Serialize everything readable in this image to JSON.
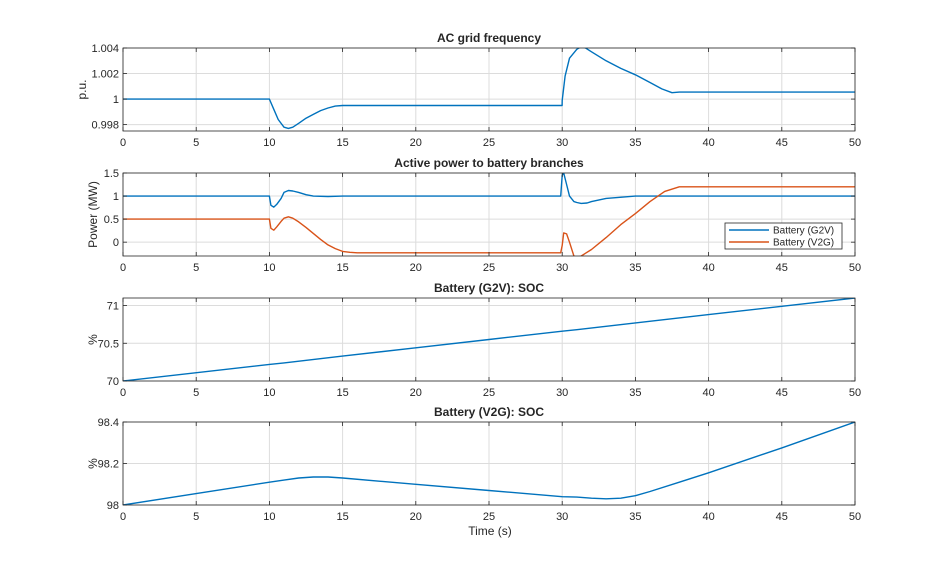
{
  "figure": {
    "xlabel": "Time (s)"
  },
  "colors": {
    "blue": "#0072BD",
    "orange": "#D95319",
    "grid": "#dcdcdc",
    "axis": "#262626"
  },
  "chart_data": [
    {
      "type": "line",
      "title": "AC grid frequency",
      "xlabel": "",
      "ylabel": "p.u.",
      "xlim": [
        0,
        50
      ],
      "ylim": [
        0.9975,
        1.004
      ],
      "xticks": [
        "0",
        "5",
        "10",
        "15",
        "20",
        "25",
        "30",
        "35",
        "40",
        "45",
        "50"
      ],
      "yticks": [
        {
          "v": 0.998,
          "label": "0.998"
        },
        {
          "v": 1.0,
          "label": "1"
        },
        {
          "v": 1.002,
          "label": "1.002"
        },
        {
          "v": 1.004,
          "label": "1.004"
        }
      ],
      "grid": true,
      "legend": null,
      "series": [
        {
          "color_key": "blue",
          "x": [
            0,
            10,
            10.3,
            10.6,
            11,
            11.3,
            11.6,
            12,
            12.5,
            13,
            13.5,
            14,
            14.5,
            15,
            16,
            20,
            25,
            29.99,
            30,
            30.2,
            30.5,
            31,
            31.3,
            31.6,
            32,
            33,
            34,
            35,
            36,
            36.8,
            37.5,
            38,
            40,
            45,
            50
          ],
          "y": [
            1.0,
            1.0,
            0.9992,
            0.9984,
            0.9978,
            0.9977,
            0.9978,
            0.9981,
            0.9985,
            0.9988,
            0.9991,
            0.9993,
            0.99945,
            0.9995,
            0.9995,
            0.9995,
            0.9995,
            0.9995,
            0.9999,
            1.0018,
            1.0032,
            1.0039,
            1.0041,
            1.004,
            1.0037,
            1.003,
            1.0024,
            1.0019,
            1.0013,
            1.0008,
            1.0005,
            1.00055,
            1.00055,
            1.00055,
            1.00055
          ]
        }
      ]
    },
    {
      "type": "line",
      "title": "Active power to battery branches",
      "xlabel": "",
      "ylabel": "Power (MW)",
      "xlim": [
        0,
        50
      ],
      "ylim": [
        -0.3,
        1.5
      ],
      "xticks": [
        "0",
        "5",
        "10",
        "15",
        "20",
        "25",
        "30",
        "35",
        "40",
        "45",
        "50"
      ],
      "yticks": [
        {
          "v": 0,
          "label": "0"
        },
        {
          "v": 0.5,
          "label": "0.5"
        },
        {
          "v": 1,
          "label": "1"
        },
        {
          "v": 1.5,
          "label": "1.5"
        }
      ],
      "grid": true,
      "legend": "bottom-right",
      "series": [
        {
          "name": "Battery (G2V)",
          "color_key": "blue",
          "x": [
            0,
            10,
            10.1,
            10.3,
            10.5,
            10.8,
            11,
            11.3,
            11.6,
            12,
            12.5,
            13,
            14,
            15,
            20,
            25,
            29.9,
            30,
            30.1,
            30.3,
            30.5,
            30.8,
            31,
            31.3,
            31.7,
            32,
            33,
            35,
            40,
            45,
            50
          ],
          "y": [
            1.0,
            1.0,
            0.8,
            0.76,
            0.82,
            0.95,
            1.08,
            1.12,
            1.11,
            1.08,
            1.03,
            1.0,
            0.99,
            1.0,
            1.0,
            1.0,
            1.0,
            1.45,
            1.5,
            1.25,
            1.0,
            0.88,
            0.86,
            0.84,
            0.85,
            0.88,
            0.95,
            1.0,
            1.0,
            1.0,
            1.0
          ]
        },
        {
          "name": "Battery (V2G)",
          "color_key": "orange",
          "x": [
            0,
            10,
            10.1,
            10.3,
            10.5,
            10.8,
            11,
            11.3,
            11.6,
            12,
            12.5,
            13,
            13.5,
            14,
            14.5,
            15,
            15.5,
            16,
            20,
            25,
            29.9,
            30,
            30.1,
            30.3,
            30.5,
            30.8,
            31,
            31.3,
            31.6,
            32,
            33,
            34,
            35,
            36,
            37,
            38,
            38.5,
            40,
            45,
            50
          ],
          "y": [
            0.5,
            0.5,
            0.3,
            0.26,
            0.33,
            0.45,
            0.52,
            0.55,
            0.52,
            0.44,
            0.32,
            0.19,
            0.06,
            -0.06,
            -0.14,
            -0.2,
            -0.22,
            -0.23,
            -0.23,
            -0.23,
            -0.23,
            -0.07,
            0.2,
            0.18,
            0.0,
            -0.3,
            -0.33,
            -0.3,
            -0.24,
            -0.16,
            0.1,
            0.38,
            0.62,
            0.88,
            1.1,
            1.2,
            1.2,
            1.2,
            1.2,
            1.2
          ]
        }
      ]
    },
    {
      "type": "line",
      "title": "Battery (G2V): SOC",
      "xlabel": "",
      "ylabel": "%",
      "xlim": [
        0,
        50
      ],
      "ylim": [
        70,
        71.1
      ],
      "xticks": [
        "0",
        "5",
        "10",
        "15",
        "20",
        "25",
        "30",
        "35",
        "40",
        "45",
        "50"
      ],
      "yticks": [
        {
          "v": 70,
          "label": "70"
        },
        {
          "v": 70.5,
          "label": "70.5"
        },
        {
          "v": 71,
          "label": "71"
        }
      ],
      "grid": true,
      "legend": null,
      "series": [
        {
          "color_key": "blue",
          "x": [
            0,
            10,
            11,
            15,
            20,
            25,
            30,
            31,
            35,
            40,
            45,
            50
          ],
          "y": [
            70.0,
            70.22,
            70.24,
            70.33,
            70.44,
            70.55,
            70.66,
            70.68,
            70.77,
            70.88,
            70.99,
            71.1
          ]
        }
      ]
    },
    {
      "type": "line",
      "title": "Battery (V2G): SOC",
      "xlabel": "Time (s)",
      "ylabel": "%",
      "xlim": [
        0,
        50
      ],
      "ylim": [
        98,
        98.4
      ],
      "xticks": [
        "0",
        "5",
        "10",
        "15",
        "20",
        "25",
        "30",
        "35",
        "40",
        "45",
        "50"
      ],
      "yticks": [
        {
          "v": 98,
          "label": "98"
        },
        {
          "v": 98.2,
          "label": "98.2"
        },
        {
          "v": 98.4,
          "label": "98.4"
        }
      ],
      "grid": true,
      "legend": null,
      "series": [
        {
          "color_key": "blue",
          "x": [
            0,
            5,
            10,
            11,
            12,
            13,
            14,
            15,
            20,
            25,
            30,
            31,
            32,
            33,
            34,
            35,
            36,
            38,
            40,
            45,
            50
          ],
          "y": [
            98.0,
            98.055,
            98.11,
            98.12,
            98.13,
            98.135,
            98.135,
            98.13,
            98.1,
            98.07,
            98.04,
            98.038,
            98.033,
            98.03,
            98.033,
            98.045,
            98.065,
            98.11,
            98.155,
            98.275,
            98.4
          ]
        }
      ]
    }
  ]
}
